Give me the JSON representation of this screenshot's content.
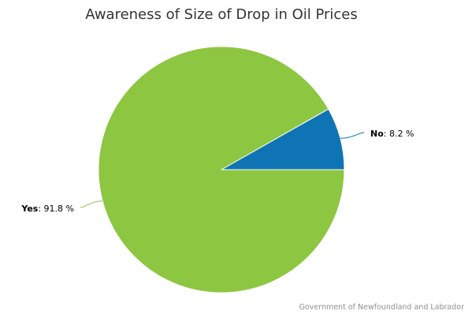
{
  "chart_data": {
    "type": "pie",
    "title": "Awareness of Size of Drop in Oil Prices",
    "slices": [
      {
        "label": "No",
        "value": 8.2,
        "display": "8.2 %",
        "color": "#0f74b3"
      },
      {
        "label": "Yes",
        "value": 91.8,
        "display": "91.8 %",
        "color": "#8dc641"
      }
    ],
    "credit": "Government of Newfoundland and Labrador"
  }
}
